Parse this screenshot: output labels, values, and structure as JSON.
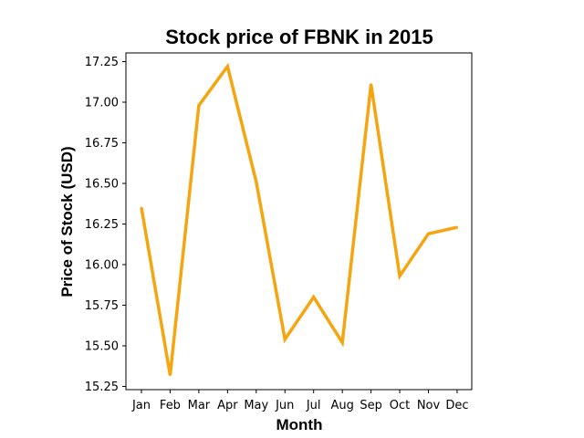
{
  "chart_data": {
    "type": "line",
    "title": "Stock price of FBNK in 2015",
    "xlabel": "Month",
    "ylabel": "Price of Stock (USD)",
    "categories": [
      "Jan",
      "Feb",
      "Mar",
      "Apr",
      "May",
      "Jun",
      "Jul",
      "Aug",
      "Sep",
      "Oct",
      "Nov",
      "Dec"
    ],
    "values": [
      16.35,
      15.32,
      16.98,
      17.22,
      16.51,
      15.54,
      15.8,
      15.52,
      17.11,
      15.93,
      16.19,
      16.23
    ],
    "yticks": [
      "15.25",
      "15.50",
      "15.75",
      "16.00",
      "16.25",
      "16.50",
      "16.75",
      "17.00",
      "17.25"
    ],
    "ylim": [
      15.25,
      17.25
    ],
    "grid": false,
    "line_color": "#f5a50f"
  }
}
